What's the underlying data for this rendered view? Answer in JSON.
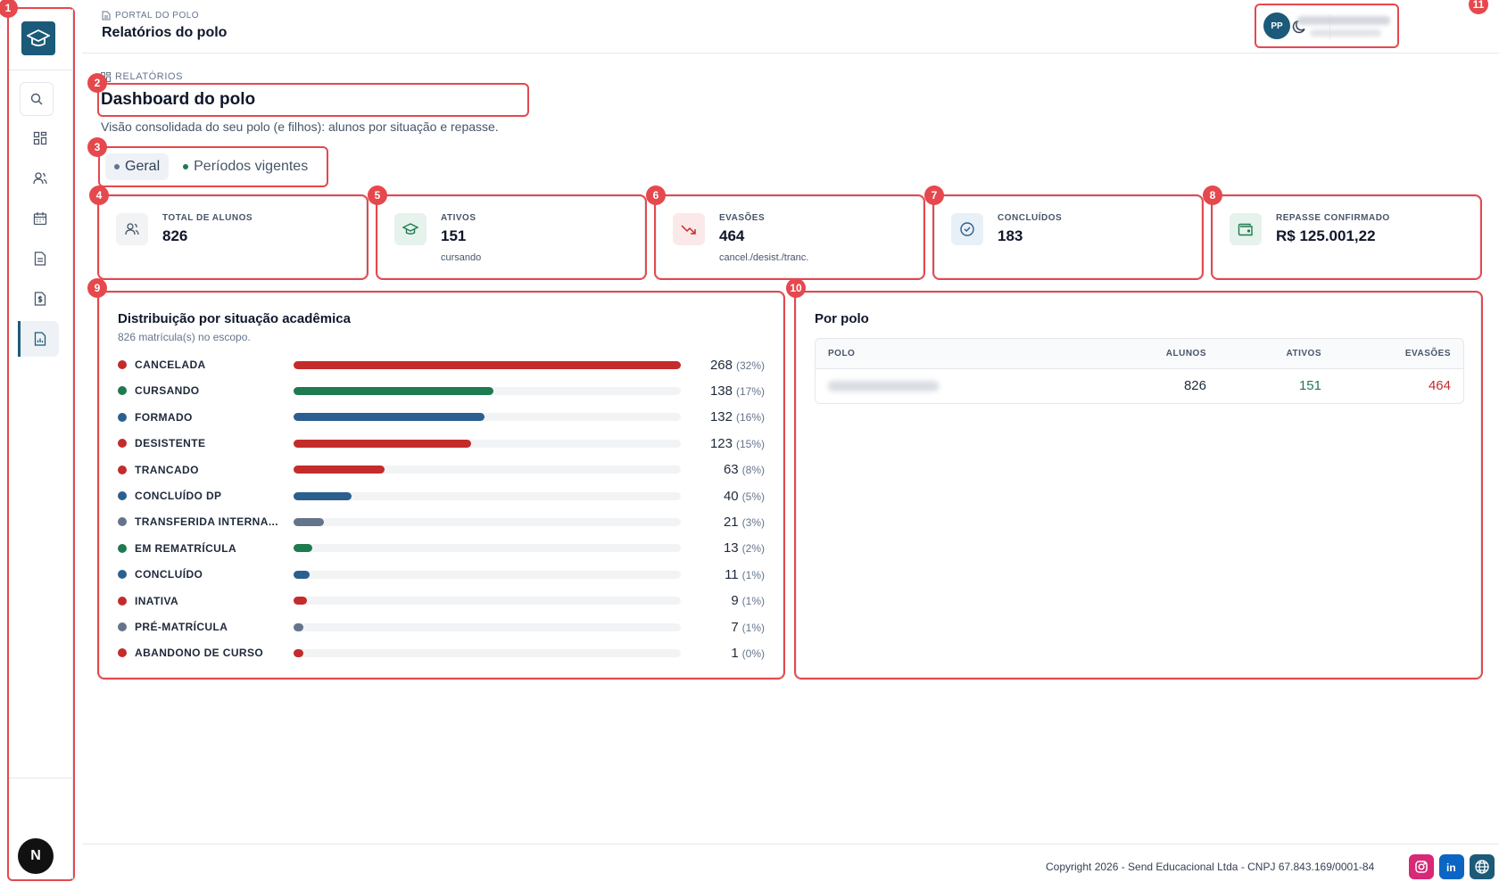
{
  "header": {
    "breadcrumb": "PORTAL DO POLO",
    "title": "Relatórios do polo",
    "user_initials": "PP"
  },
  "sidebar": {
    "logo": "graduation-cap-logo",
    "items": [
      {
        "icon": "search-icon"
      },
      {
        "icon": "dashboard-icon"
      },
      {
        "icon": "users-icon"
      },
      {
        "icon": "calendar-icon"
      },
      {
        "icon": "document-icon"
      },
      {
        "icon": "money-icon"
      },
      {
        "icon": "report-icon",
        "active": true
      }
    ],
    "bottom_avatar": "N"
  },
  "section": {
    "label": "RELATÓRIOS",
    "title": "Dashboard do polo",
    "subtitle": "Visão consolidada do seu polo (e filhos): alunos por situação e repasse."
  },
  "tabs": [
    {
      "label": "Geral",
      "active": true,
      "dot_color": "#64748b"
    },
    {
      "label": "Períodos vigentes",
      "active": false,
      "dot_color": "#1e7a4f"
    }
  ],
  "cards": [
    {
      "label": "TOTAL DE ALUNOS",
      "value": "826",
      "sub": "",
      "icon": "users-icon",
      "icon_bg": "#f1f3f5",
      "icon_color": "#475569"
    },
    {
      "label": "ATIVOS",
      "value": "151",
      "sub": "cursando",
      "icon": "graduation-cap-icon",
      "icon_bg": "#e6f2ec",
      "icon_color": "#1e7a4f"
    },
    {
      "label": "EVASÕES",
      "value": "464",
      "sub": "cancel./desist./tranc.",
      "icon": "trending-down-icon",
      "icon_bg": "#fbe9e9",
      "icon_color": "#c42b2b"
    },
    {
      "label": "CONCLUÍDOS",
      "value": "183",
      "sub": "",
      "icon": "check-circle-icon",
      "icon_bg": "#e8f0f7",
      "icon_color": "#2b5f8f"
    },
    {
      "label": "REPASSE CONFIRMADO",
      "value": "R$ 125.001,22",
      "sub": "",
      "icon": "wallet-icon",
      "icon_bg": "#e6f2ec",
      "icon_color": "#1e7a4f"
    }
  ],
  "distribution": {
    "title": "Distribuição por situação acadêmica",
    "subtitle": "826 matrícula(s) no escopo.",
    "rows": [
      {
        "name": "CANCELADA",
        "count": "268",
        "pct": "(32%)",
        "fraction": 1.0,
        "color": "#c42b2b"
      },
      {
        "name": "CURSANDO",
        "count": "138",
        "pct": "(17%)",
        "fraction": 0.515,
        "color": "#1e7a4f"
      },
      {
        "name": "FORMADO",
        "count": "132",
        "pct": "(16%)",
        "fraction": 0.493,
        "color": "#2b5f8f"
      },
      {
        "name": "DESISTENTE",
        "count": "123",
        "pct": "(15%)",
        "fraction": 0.459,
        "color": "#c42b2b"
      },
      {
        "name": "TRANCADO",
        "count": "63",
        "pct": "(8%)",
        "fraction": 0.235,
        "color": "#c42b2b"
      },
      {
        "name": "CONCLUÍDO DP",
        "count": "40",
        "pct": "(5%)",
        "fraction": 0.149,
        "color": "#2b5f8f"
      },
      {
        "name": "TRANSFERIDA INTERNA...",
        "count": "21",
        "pct": "(3%)",
        "fraction": 0.078,
        "color": "#64748b"
      },
      {
        "name": "EM REMATRÍCULA",
        "count": "13",
        "pct": "(2%)",
        "fraction": 0.049,
        "color": "#1e7a4f"
      },
      {
        "name": "CONCLUÍDO",
        "count": "11",
        "pct": "(1%)",
        "fraction": 0.041,
        "color": "#2b5f8f"
      },
      {
        "name": "INATIVA",
        "count": "9",
        "pct": "(1%)",
        "fraction": 0.034,
        "color": "#c42b2b"
      },
      {
        "name": "PRÉ-MATRÍCULA",
        "count": "7",
        "pct": "(1%)",
        "fraction": 0.026,
        "color": "#64748b"
      },
      {
        "name": "ABANDONO DE CURSO",
        "count": "1",
        "pct": "(0%)",
        "fraction": 0.004,
        "color": "#c42b2b"
      }
    ]
  },
  "por_polo": {
    "title": "Por polo",
    "columns": [
      "POLO",
      "ALUNOS",
      "ATIVOS",
      "EVASÕES"
    ],
    "rows": [
      {
        "polo": "",
        "alunos": "826",
        "ativos": "151",
        "evasoes": "464"
      }
    ],
    "ativos_color": "#1e7a4f",
    "evasoes_color": "#c42b2b"
  },
  "footer": {
    "copyright": "Copyright 2026 - Send Educacional Ltda - CNPJ 67.843.169/0001-84",
    "social": [
      {
        "icon": "instagram-icon",
        "color": "#d62976"
      },
      {
        "icon": "linkedin-icon",
        "color": "#0a66c2"
      },
      {
        "icon": "globe-icon",
        "color": "#1b5a79"
      }
    ]
  },
  "annotations": [
    "1",
    "2",
    "3",
    "4",
    "5",
    "6",
    "7",
    "8",
    "9",
    "10",
    "11"
  ]
}
